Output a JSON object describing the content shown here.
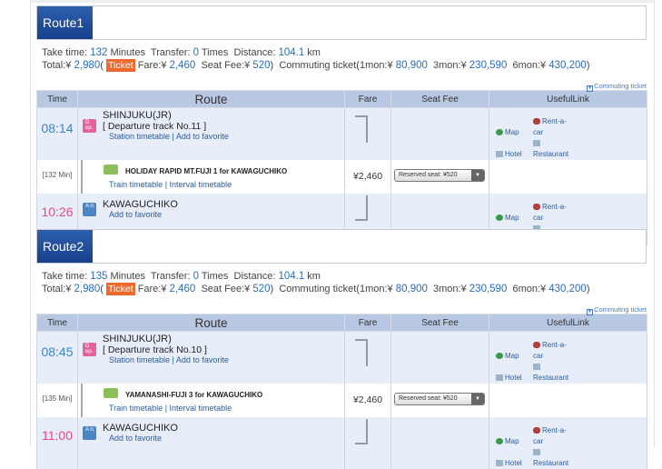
{
  "routes": [
    {
      "label": "Route1",
      "take_time_label": "Take time:",
      "take_time": "132",
      "minutes": "Minutes",
      "transfer_label": "Transfer:",
      "transfer": "0",
      "times": "Times",
      "distance_label": "Distance:",
      "distance": "104.1",
      "km": "km",
      "total_label": "Total:¥",
      "total": "2,980",
      "ticket": "Ticket",
      "fare_label": "Fare:¥",
      "fare": "2,460",
      "seat_label": "Seat Fee:¥",
      "seat": "520",
      "commute_label": "Commuting ticket(1mon:¥",
      "m1": "80,900",
      "m3_label": "3mon:¥",
      "m3": "230,590",
      "m6_label": "6mon:¥",
      "m6": "430,200",
      "close": ")",
      "commuting_link": "Commuting ticket",
      "headers": {
        "time": "Time",
        "route": "Route",
        "fare": "Fare",
        "seat_fee": "Seat Fee",
        "useful": "UsefulLink"
      },
      "dep": {
        "time": "08:14",
        "badge": "D ep.",
        "station": "SHINJUKU(JR)",
        "track": "[ Departure track No.11 ]",
        "timetable": "Station timetable",
        "favorite": "Add to favorite"
      },
      "train": {
        "duration": "[132 Min]",
        "name": "HOLIDAY RAPID MT.FUJI 1  for KAWAGUCHIKO",
        "train_timetable": "Train timetable",
        "interval": "Interval timetable",
        "fare": "¥2,460",
        "seat_select": "Reserved seat: ¥520"
      },
      "arr": {
        "time": "10:26",
        "badge": "A rr.",
        "station": "KAWAGUCHIKO",
        "favorite": "Add to favorite"
      }
    },
    {
      "label": "Route2",
      "take_time_label": "Take time:",
      "take_time": "135",
      "minutes": "Minutes",
      "transfer_label": "Transfer:",
      "transfer": "0",
      "times": "Times",
      "distance_label": "Distance:",
      "distance": "104.1",
      "km": "km",
      "total_label": "Total:¥",
      "total": "2,980",
      "ticket": "Ticket",
      "fare_label": "Fare:¥",
      "fare": "2,460",
      "seat_label": "Seat Fee:¥",
      "seat": "520",
      "commute_label": "Commuting ticket(1mon:¥",
      "m1": "80,900",
      "m3_label": "3mon:¥",
      "m3": "230,590",
      "m6_label": "6mon:¥",
      "m6": "430,200",
      "close": ")",
      "commuting_link": "Commuting ticket",
      "headers": {
        "time": "Time",
        "route": "Route",
        "fare": "Fare",
        "seat_fee": "Seat Fee",
        "useful": "UsefulLink"
      },
      "dep": {
        "time": "08:45",
        "badge": "D ep.",
        "station": "SHINJUKU(JR)",
        "track": "[ Departure track No.10 ]",
        "timetable": "Station timetable",
        "favorite": "Add to favorite"
      },
      "train": {
        "duration": "[135 Min]",
        "name": "YAMANASHI-FUJI 3  for KAWAGUCHIKO",
        "train_timetable": "Train timetable",
        "interval": "Interval timetable",
        "fare": "¥2,460",
        "seat_select": "Reserved seat: ¥520"
      },
      "arr": {
        "time": "11:00",
        "badge": "A rr.",
        "station": "KAWAGUCHIKO",
        "favorite": "Add to favorite"
      }
    }
  ],
  "useful_links": {
    "map": "Map",
    "rentacar": "Rent-a-car",
    "hotel": "Hotel",
    "restaurant": "Restaurant"
  },
  "colors": {
    "route_label": "#1e4a9c",
    "ticket": "#ee6a2c",
    "dep_time": "#3a83c6",
    "arr_time": "#e0488f",
    "header": "#b8c7e2"
  }
}
